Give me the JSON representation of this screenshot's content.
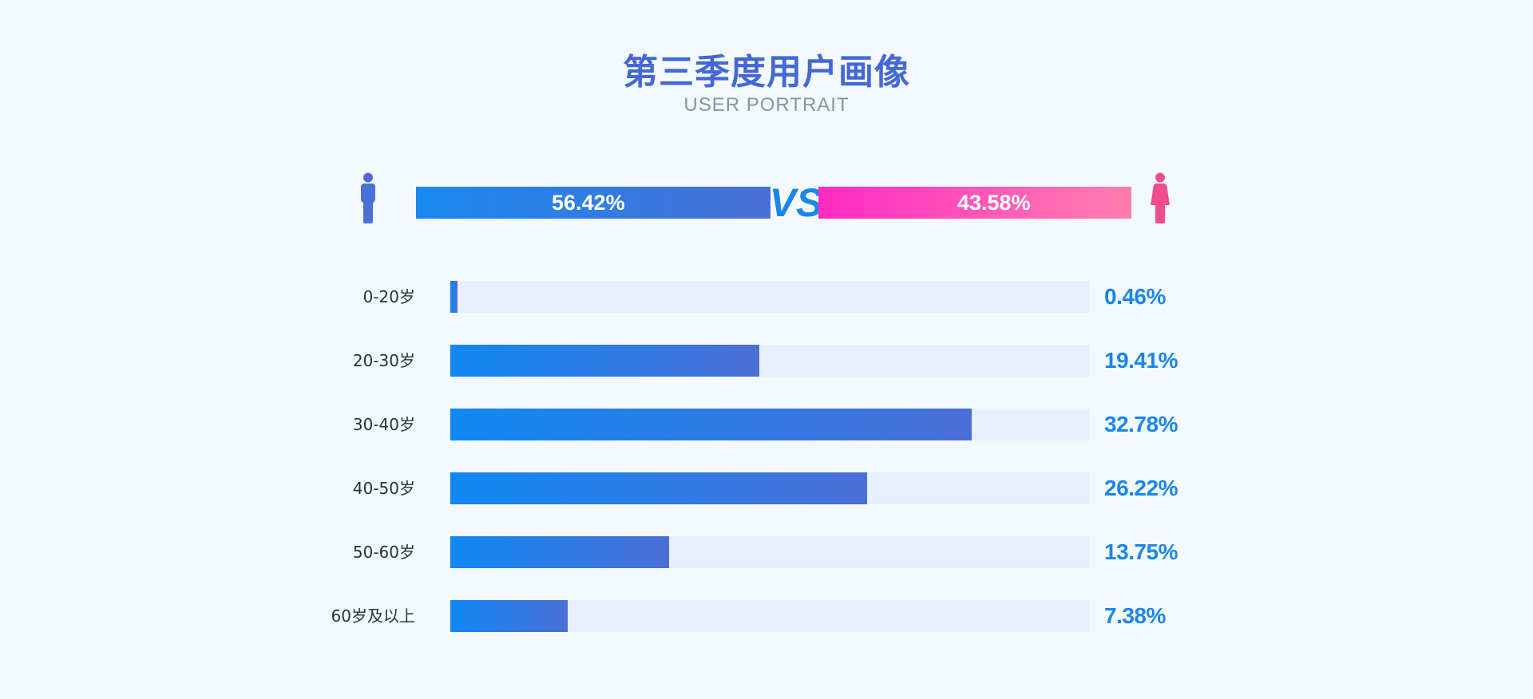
{
  "title": "第三季度用户画像",
  "subtitle": "USER PORTRAIT",
  "colors": {
    "accent": "#4468d6",
    "male_start": "#1989f0",
    "male_end": "#4a70d6",
    "female_start": "#ff2ac5",
    "female_end": "#ff7fae",
    "track": "#e8effd",
    "value_text": "#1a86ec"
  },
  "icons": {
    "male": "male-person-icon",
    "female": "female-person-icon"
  },
  "vs_label": "VS",
  "chart_data": [
    {
      "type": "bar",
      "orientation": "horizontal-split",
      "categories": [
        "male",
        "female"
      ],
      "values": [
        56.42,
        43.58
      ],
      "labels": [
        "56.42%",
        "43.58%"
      ]
    },
    {
      "type": "bar",
      "orientation": "horizontal",
      "categories": [
        "0-20岁",
        "20-30岁",
        "30-40岁",
        "40-50岁",
        "50-60岁",
        "60岁及以上"
      ],
      "values": [
        0.46,
        19.41,
        32.78,
        26.22,
        13.75,
        7.38
      ],
      "labels": [
        "0.46%",
        "19.41%",
        "32.78%",
        "26.22%",
        "13.75%",
        "7.38%"
      ]
    }
  ]
}
